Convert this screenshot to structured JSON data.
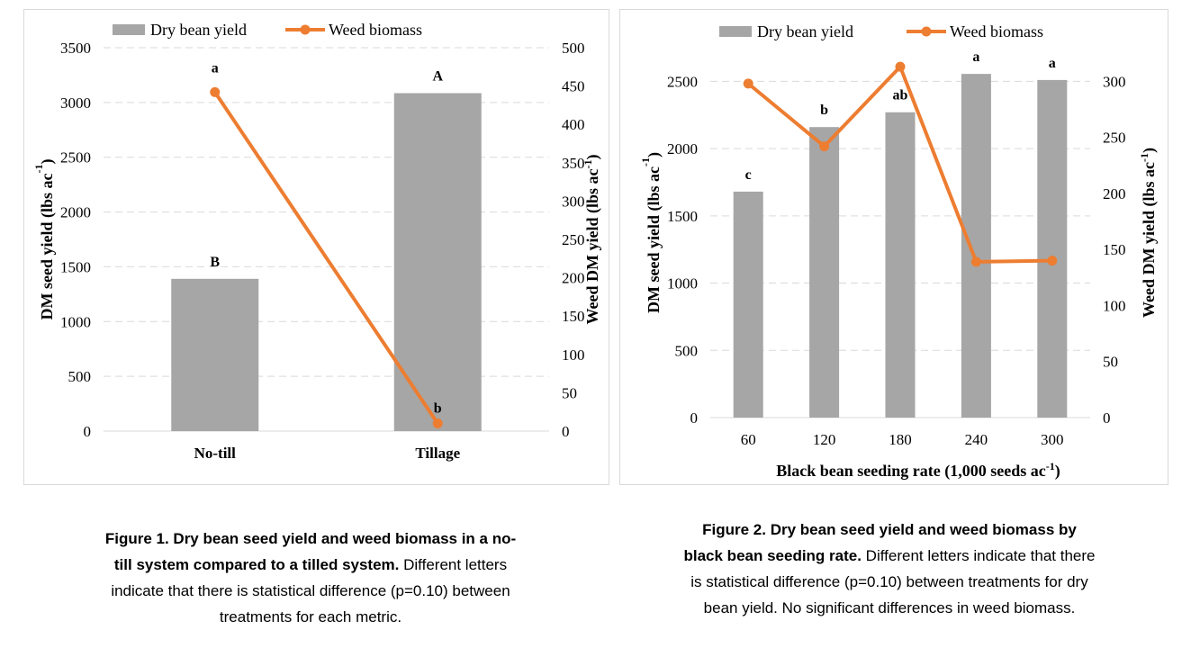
{
  "colors": {
    "bar": "#a6a6a6",
    "line": "#ed7d31",
    "grid": "#d9d9d9",
    "border": "#d9d9d9"
  },
  "chart_data": [
    {
      "type": "bar+line",
      "categories": [
        "No-till",
        "Tillage"
      ],
      "series": [
        {
          "name": "Dry bean yield",
          "type": "bar",
          "axis": "left",
          "values": [
            1390,
            3085
          ],
          "labels": [
            "B",
            "A"
          ]
        },
        {
          "name": "Weed biomass",
          "type": "line",
          "axis": "right",
          "values": [
            442,
            10
          ],
          "labels": [
            "a",
            "b"
          ]
        }
      ],
      "xlabel": "",
      "ylabel": "DM seed yield (lbs ac",
      "ylabel_sup": "-1",
      "ylabel_close": ")",
      "y2label": "Weed DM yield (lbs ac",
      "y2label_sup": "-1",
      "y2label_close": ")",
      "ylim": [
        0,
        3500
      ],
      "yticks": [
        0,
        500,
        1000,
        1500,
        2000,
        2500,
        3000,
        3500
      ],
      "y2lim": [
        0,
        500
      ],
      "y2ticks": [
        0,
        50,
        100,
        150,
        200,
        250,
        300,
        350,
        400,
        450,
        500
      ],
      "grid": true,
      "legend": "top-center"
    },
    {
      "type": "bar+line",
      "categories": [
        "60",
        "120",
        "180",
        "240",
        "300"
      ],
      "series": [
        {
          "name": "Dry bean yield",
          "type": "bar",
          "axis": "left",
          "values": [
            1680,
            2160,
            2270,
            2555,
            2510
          ],
          "labels": [
            "c",
            "b",
            "ab",
            "a",
            "a"
          ]
        },
        {
          "name": "Weed biomass",
          "type": "line",
          "axis": "right",
          "values": [
            298,
            242,
            313,
            139,
            140
          ]
        }
      ],
      "xlabel": "Black bean seeding rate (1,000 seeds ac",
      "xlabel_sup": "-1",
      "xlabel_close": ")",
      "ylabel": "DM seed yield (lbs ac",
      "ylabel_sup": "-1",
      "ylabel_close": ")",
      "y2label": "Weed DM yield (lbs ac",
      "y2label_sup": "-1",
      "y2label_close": ")",
      "ylim": [
        0,
        2750
      ],
      "yticks": [
        0,
        500,
        1000,
        1500,
        2000,
        2500
      ],
      "y2lim": [
        0,
        330
      ],
      "y2ticks": [
        0,
        50,
        100,
        150,
        200,
        250,
        300
      ],
      "grid": true,
      "legend": "top-center"
    }
  ],
  "captions": [
    {
      "bold": "Figure 1. Dry bean seed yield and weed biomass in a no-till system compared to a tilled system.",
      "text": " Different letters indicate that there is statistical difference (p=0.10) between treatments for each metric."
    },
    {
      "bold": "Figure 2. Dry bean seed yield and weed biomass by black bean seeding rate.",
      "text": " Different letters indicate that there is statistical difference (p=0.10) between treatments for dry bean yield. No significant differences in weed biomass."
    }
  ]
}
